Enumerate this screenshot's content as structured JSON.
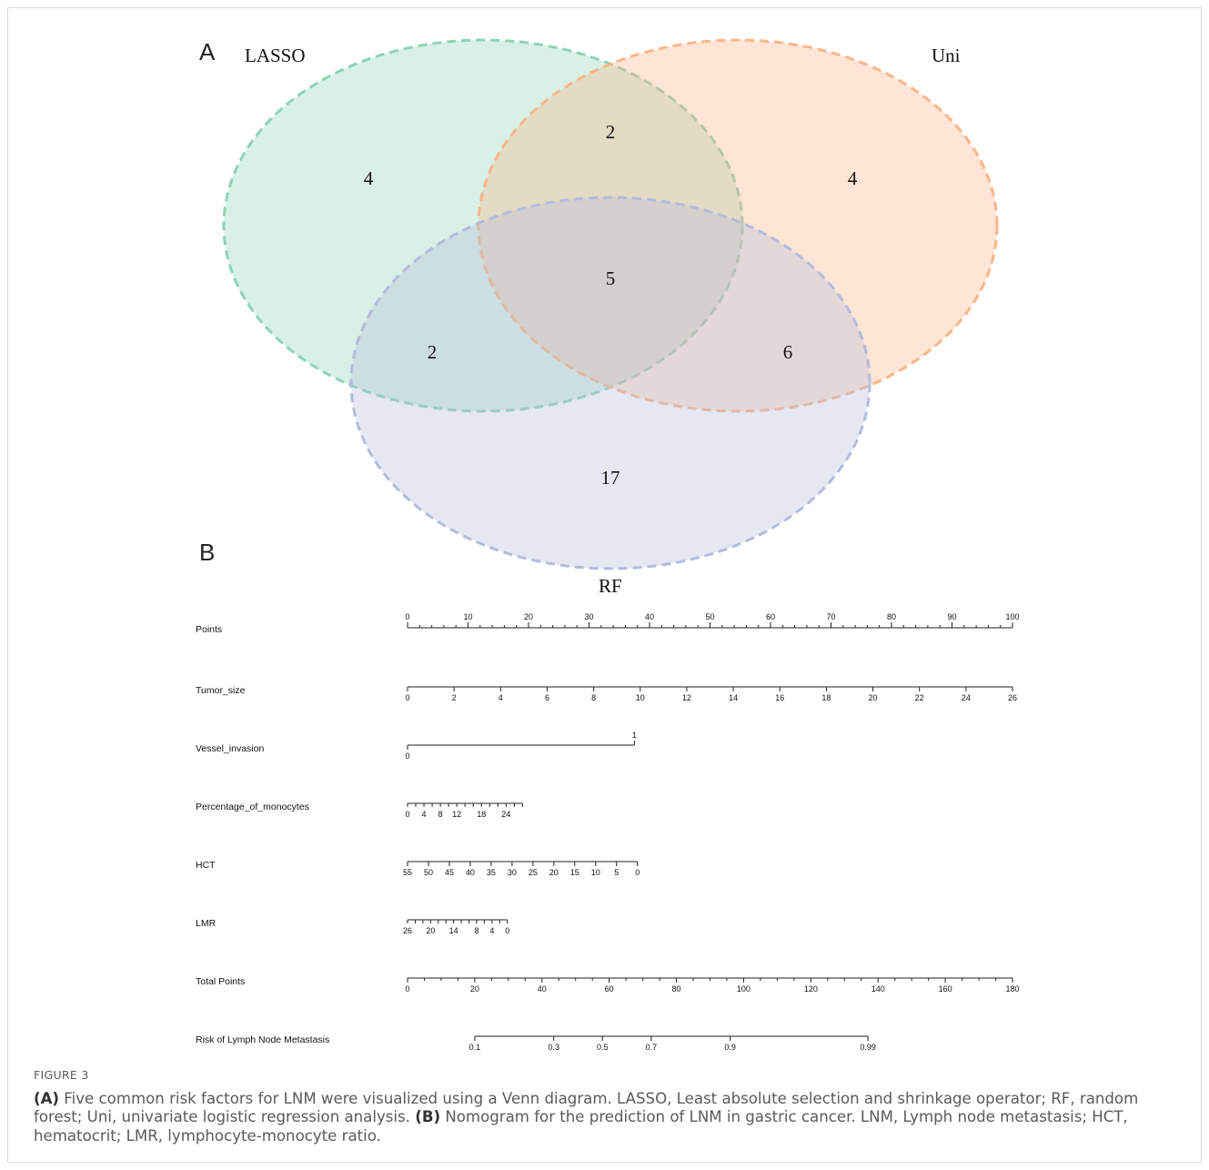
{
  "figure": {
    "panel_a_label": "A",
    "panel_b_label": "B",
    "caption_label": "FIGURE 3",
    "caption_parts": [
      {
        "bold": true,
        "text": "(A)"
      },
      {
        "bold": false,
        "text": " Five common risk factors for LNM were visualized using a Venn diagram. LASSO, Least absolute selection and shrinkage operator; RF, random forest; Uni, univariate logistic regression analysis. "
      },
      {
        "bold": true,
        "text": "(B)"
      },
      {
        "bold": false,
        "text": " Nomogram for the prediction of LNM in gastric cancer. LNM, Lymph node metastasis; HCT, hematocrit; LMR, lymphocyte-monocyte ratio."
      }
    ]
  },
  "venn": {
    "sets": [
      {
        "name": "LASSO",
        "color": "#8fd3b5"
      },
      {
        "name": "Uni",
        "color": "#fbb58a"
      },
      {
        "name": "RF",
        "color": "#b4bcdd"
      }
    ],
    "regions": {
      "lasso_only": "4",
      "uni_only": "4",
      "lasso_uni": "2",
      "all_three": "5",
      "lasso_rf": "2",
      "uni_rf": "6",
      "rf_only": "17"
    }
  },
  "chart_data": {
    "type": "nomogram",
    "points_range": [
      0,
      100
    ],
    "rows": [
      {
        "label": "Points",
        "kind": "points",
        "ticks": [
          "0",
          "10",
          "20",
          "30",
          "40",
          "50",
          "60",
          "70",
          "80",
          "90",
          "100"
        ],
        "minor_per_major": 5
      },
      {
        "label": "Tumor_size",
        "kind": "variable",
        "ticks": [
          "0",
          "2",
          "4",
          "6",
          "8",
          "10",
          "12",
          "14",
          "16",
          "18",
          "20",
          "22",
          "24",
          "26"
        ],
        "points_at_ends": [
          0,
          100
        ]
      },
      {
        "label": "Vessel_invasion",
        "kind": "categorical",
        "levels": [
          {
            "value": "0",
            "points": 0
          },
          {
            "value": "1",
            "points": 37.5
          }
        ]
      },
      {
        "label": "Percentage_of_monocytes",
        "kind": "variable",
        "ticks": [
          "0",
          "4",
          "8",
          "12",
          "18",
          "24"
        ],
        "tick_values": [
          0,
          4,
          8,
          12,
          18,
          24
        ],
        "value_range": [
          0,
          28
        ],
        "points_range": [
          0,
          19
        ]
      },
      {
        "label": "HCT",
        "kind": "variable",
        "ticks": [
          "55",
          "50",
          "45",
          "40",
          "35",
          "30",
          "25",
          "20",
          "15",
          "10",
          "5",
          "0"
        ],
        "points_range": [
          0,
          38
        ]
      },
      {
        "label": "LMR",
        "kind": "variable",
        "ticks": [
          "26",
          "20",
          "14",
          "8",
          "4",
          "0"
        ],
        "tick_values": [
          26,
          20,
          14,
          8,
          4,
          0
        ],
        "value_range": [
          26,
          0
        ],
        "points_range": [
          0,
          16.5
        ]
      },
      {
        "label": "Total Points",
        "kind": "total",
        "ticks": [
          "0",
          "20",
          "40",
          "60",
          "80",
          "100",
          "120",
          "140",
          "160",
          "180"
        ],
        "range": [
          0,
          180
        ]
      },
      {
        "label": "Risk of Lymph Node Metastasis",
        "kind": "risk",
        "ticks": [
          "0.1",
          "0.3",
          "0.5",
          "0.7",
          "0.9",
          "0.99"
        ],
        "total_points_at": [
          20,
          43.5,
          58,
          72.5,
          96,
          137
        ]
      }
    ]
  }
}
